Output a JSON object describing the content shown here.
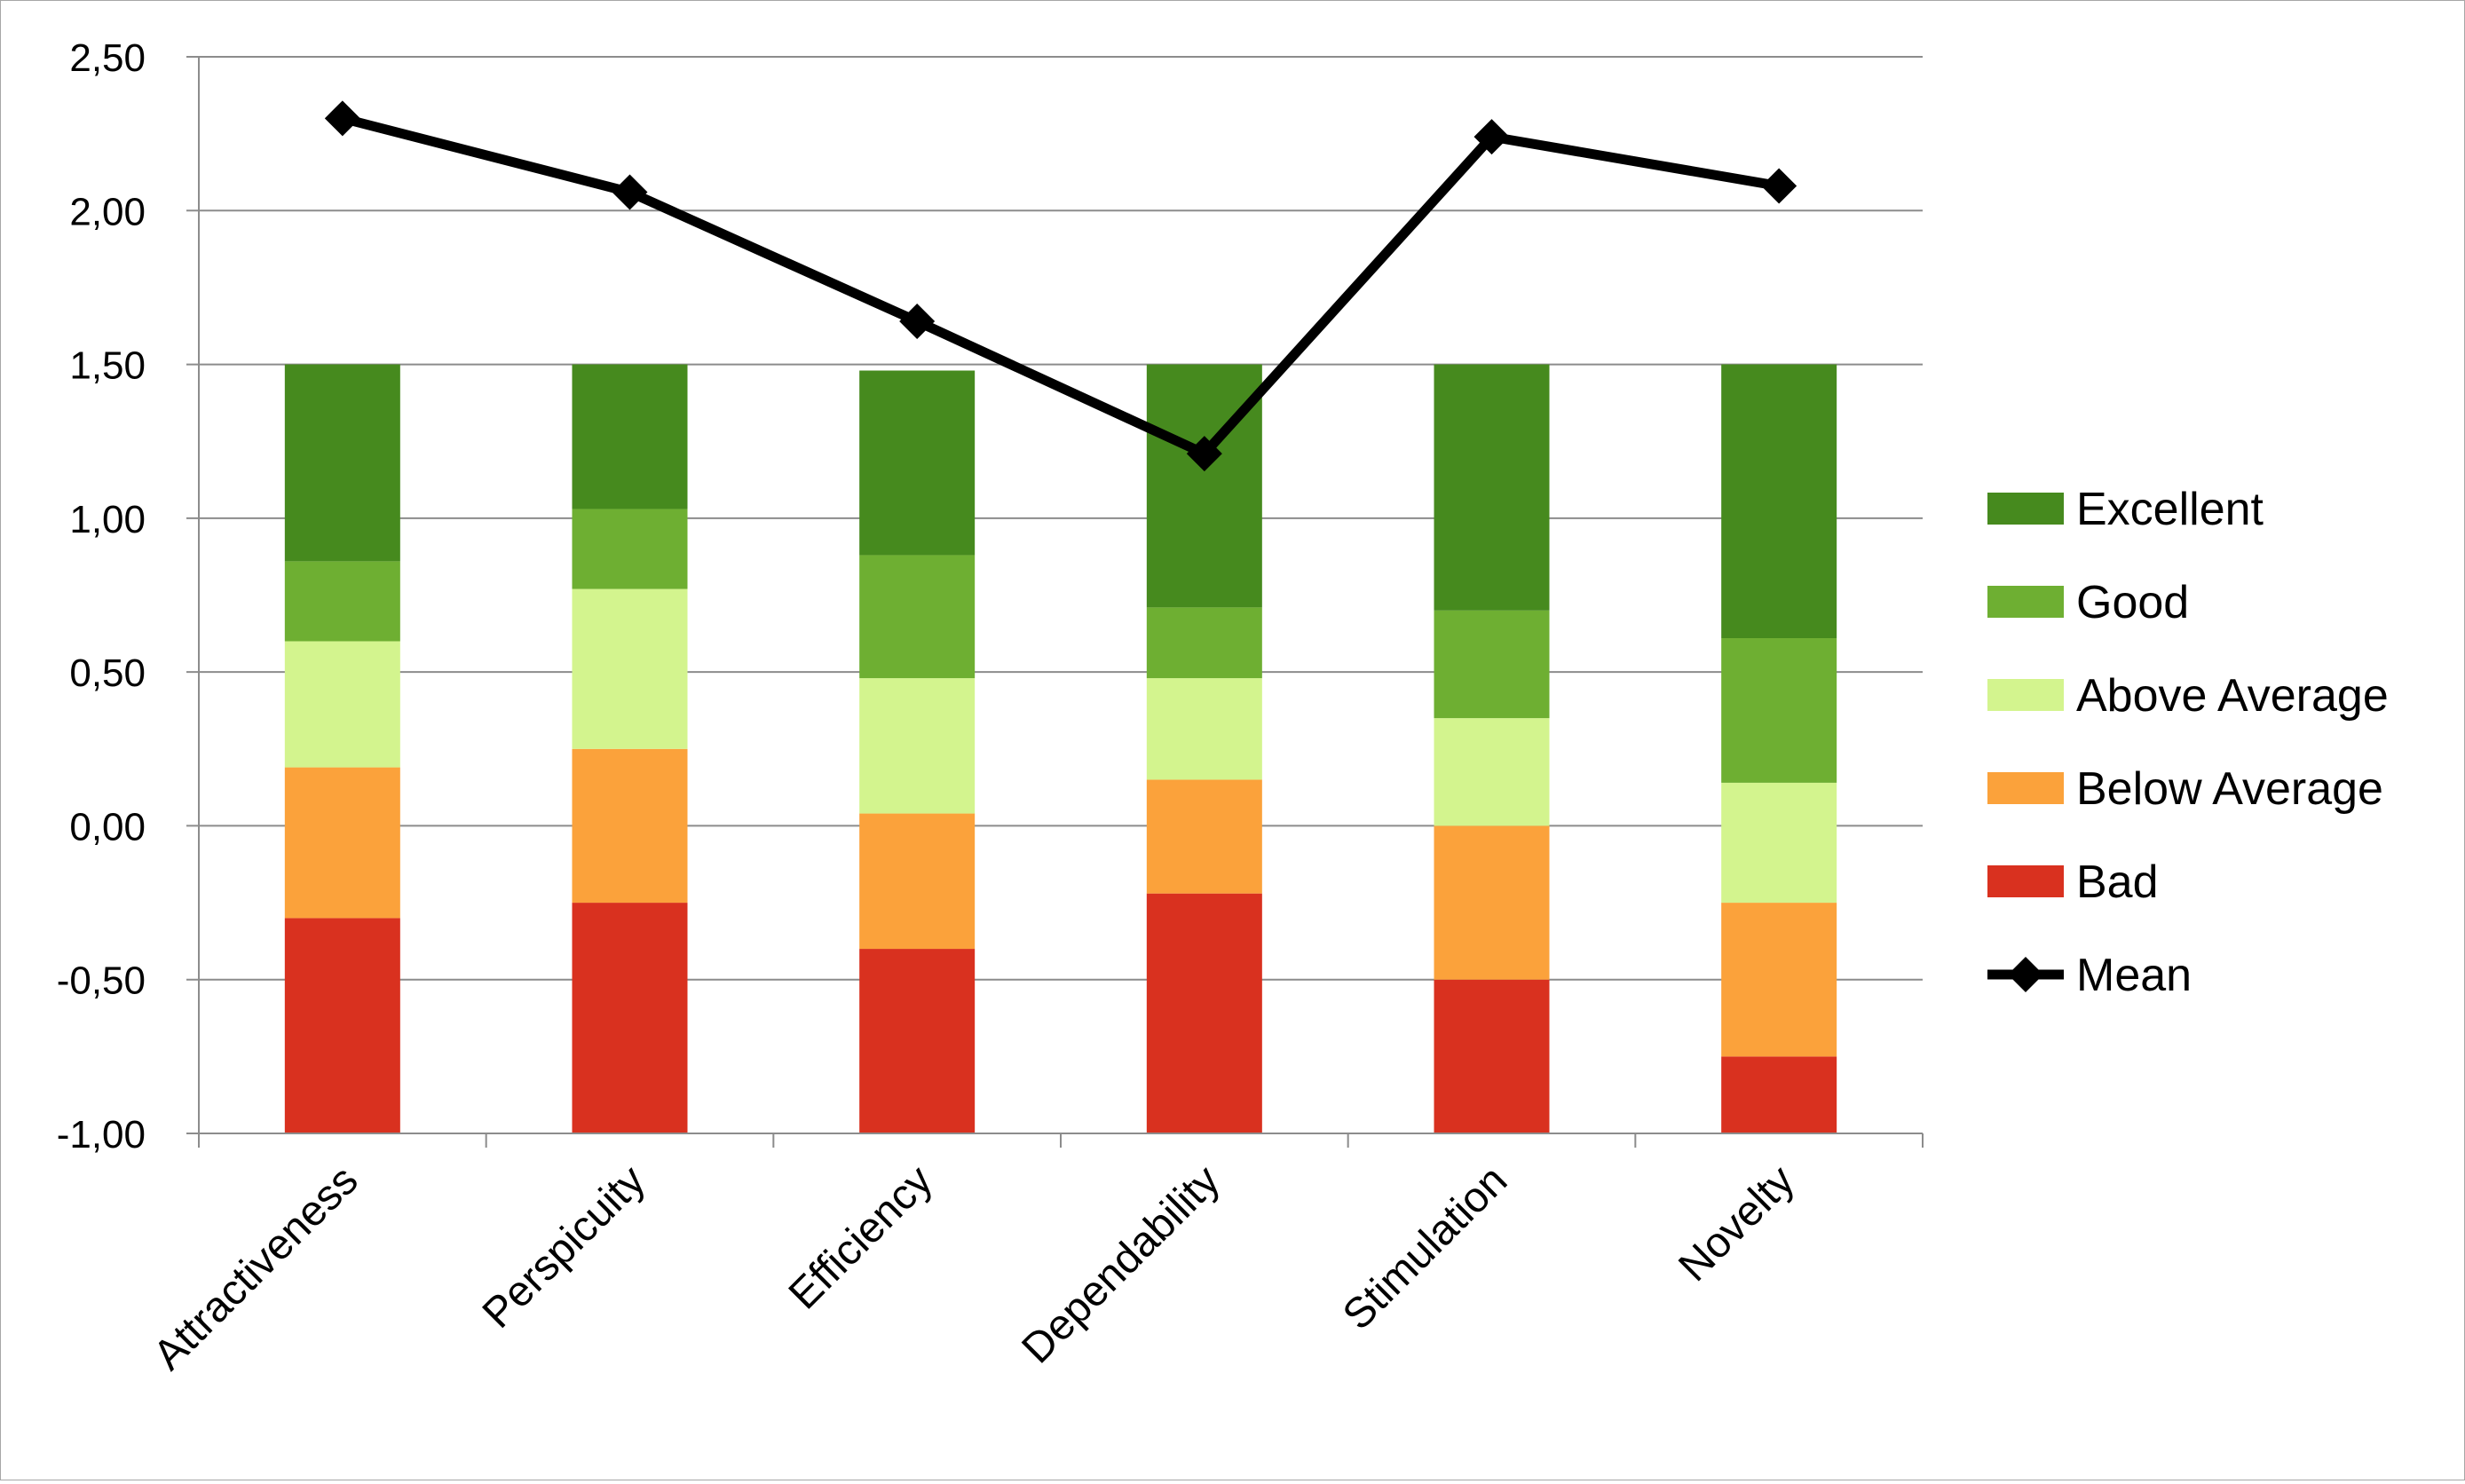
{
  "chart_data": {
    "type": "bar",
    "stacked": true,
    "categories": [
      "Attractiveness",
      "Perspicuity",
      "Efficiency",
      "Dependability",
      "Stimulation",
      "Novelty"
    ],
    "y_ticks": [
      "-1,00",
      "-0,50",
      "0,00",
      "0,50",
      "1,00",
      "1,50",
      "2,00",
      "2,50"
    ],
    "ylim": [
      -1.0,
      2.5
    ],
    "grid": true,
    "legend_position": "right",
    "series": [
      {
        "name": "Bad",
        "color": "#d9311f",
        "values": [
          0.7,
          0.75,
          0.6,
          0.78,
          0.5,
          0.25
        ]
      },
      {
        "name": "Below Average",
        "color": "#fba23b",
        "values": [
          0.49,
          0.5,
          0.44,
          0.37,
          0.5,
          0.5
        ]
      },
      {
        "name": "Above Average",
        "color": "#d3f48e",
        "values": [
          0.41,
          0.52,
          0.44,
          0.33,
          0.35,
          0.39
        ]
      },
      {
        "name": "Good",
        "color": "#6eaf32",
        "values": [
          0.26,
          0.26,
          0.4,
          0.23,
          0.35,
          0.47
        ]
      },
      {
        "name": "Excellent",
        "color": "#468a1e",
        "values": [
          0.64,
          0.47,
          0.6,
          0.79,
          0.8,
          0.89
        ]
      }
    ],
    "line_series": {
      "name": "Mean",
      "color": "#000000",
      "values": [
        2.3,
        2.06,
        1.64,
        1.21,
        2.24,
        2.08
      ]
    },
    "legend_order": [
      "Excellent",
      "Good",
      "Above Average",
      "Below Average",
      "Bad",
      "Mean"
    ]
  }
}
